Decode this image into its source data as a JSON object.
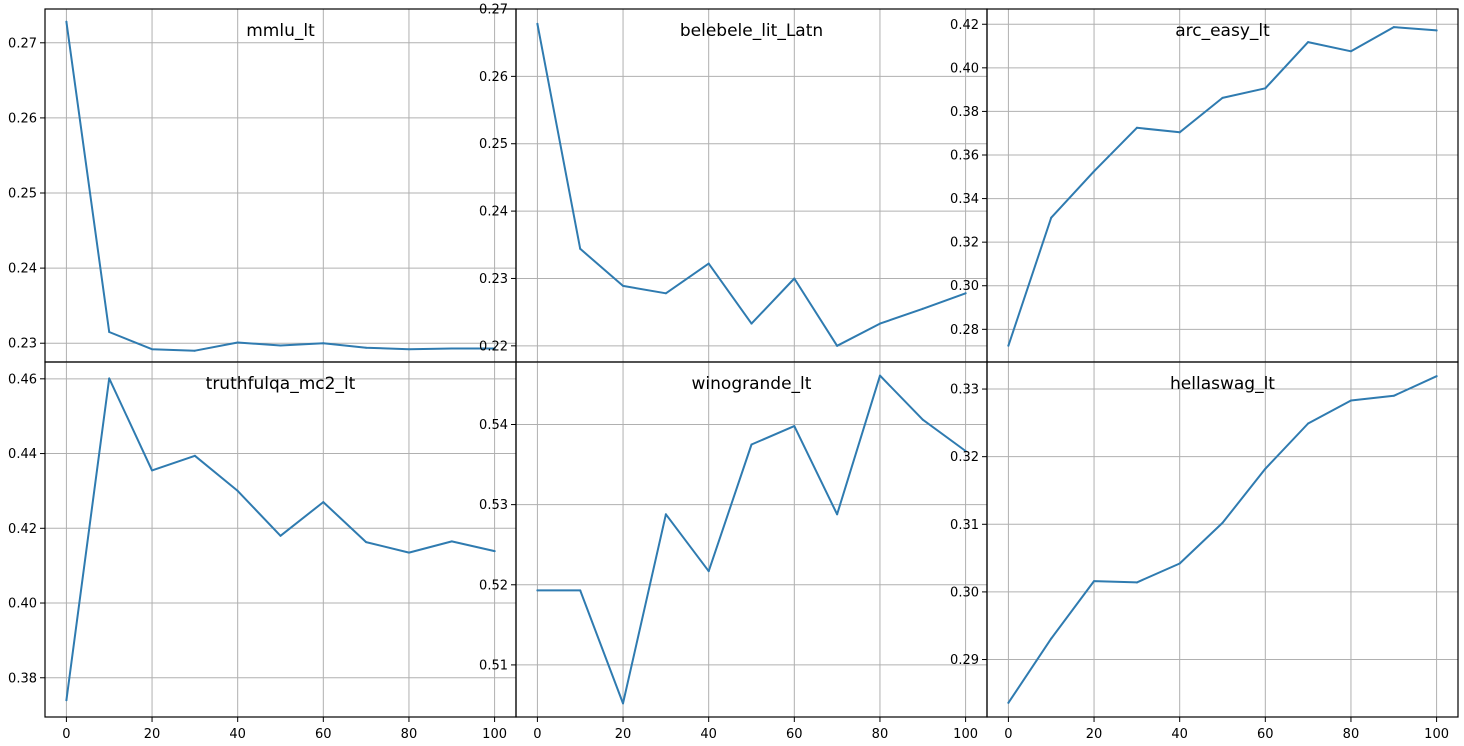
{
  "series_color": "#2f7bb0",
  "chart_data": [
    {
      "type": "line",
      "title": "mmlu_lt",
      "x": [
        0,
        10,
        20,
        30,
        40,
        50,
        60,
        70,
        80,
        90,
        100
      ],
      "y": [
        0.2728,
        0.2315,
        0.2292,
        0.229,
        0.2301,
        0.2297,
        0.23,
        0.2294,
        0.2292,
        0.2293,
        0.2293
      ],
      "xlim": [
        -5,
        105
      ],
      "ylim": [
        0.2275,
        0.2745
      ],
      "xticks": [
        "0",
        "20",
        "40",
        "60",
        "80",
        "100"
      ],
      "yticks": [
        "0.23",
        "0.24",
        "0.25",
        "0.26",
        "0.27"
      ],
      "grid": true
    },
    {
      "type": "line",
      "title": "belebele_lit_Latn",
      "x": [
        0,
        10,
        20,
        30,
        40,
        50,
        60,
        70,
        80,
        90,
        100
      ],
      "y": [
        0.2678,
        0.2344,
        0.2289,
        0.2278,
        0.2322,
        0.2233,
        0.23,
        0.22,
        0.2233,
        0.2255,
        0.2278
      ],
      "xlim": [
        -5,
        105
      ],
      "ylim": [
        0.2176,
        0.27
      ],
      "xticks": [
        "0",
        "20",
        "40",
        "60",
        "80",
        "100"
      ],
      "yticks": [
        "0.22",
        "0.23",
        "0.24",
        "0.25",
        "0.26",
        "0.27"
      ],
      "grid": true
    },
    {
      "type": "line",
      "title": "arc_easy_lt",
      "x": [
        0,
        10,
        20,
        30,
        40,
        50,
        60,
        70,
        80,
        90,
        100
      ],
      "y": [
        0.2725,
        0.3312,
        0.3525,
        0.3725,
        0.3704,
        0.3862,
        0.3906,
        0.4118,
        0.4076,
        0.4187,
        0.4172
      ],
      "xlim": [
        -5,
        105
      ],
      "ylim": [
        0.265,
        0.427
      ],
      "xticks": [
        "0",
        "20",
        "40",
        "60",
        "80",
        "100"
      ],
      "yticks": [
        "0.28",
        "0.30",
        "0.32",
        "0.34",
        "0.36",
        "0.38",
        "0.40",
        "0.42"
      ],
      "grid": true
    },
    {
      "type": "line",
      "title": "truthfulqa_mc2_lt",
      "x": [
        0,
        10,
        20,
        30,
        40,
        50,
        60,
        70,
        80,
        90,
        100
      ],
      "y": [
        0.374,
        0.4601,
        0.4355,
        0.4394,
        0.43,
        0.418,
        0.427,
        0.4163,
        0.4135,
        0.4165,
        0.4139
      ],
      "xlim": [
        -5,
        105
      ],
      "ylim": [
        0.3695,
        0.4645
      ],
      "xticks": [
        "0",
        "20",
        "40",
        "60",
        "80",
        "100"
      ],
      "yticks": [
        "0.38",
        "0.40",
        "0.42",
        "0.44",
        "0.46"
      ],
      "grid": true
    },
    {
      "type": "line",
      "title": "winogrande_lt",
      "x": [
        0,
        10,
        20,
        30,
        40,
        50,
        60,
        70,
        80,
        90,
        100
      ],
      "y": [
        0.5193,
        0.5193,
        0.5052,
        0.5288,
        0.5217,
        0.5375,
        0.5398,
        0.5288,
        0.5461,
        0.5406,
        0.5367
      ],
      "xlim": [
        -5,
        105
      ],
      "ylim": [
        0.5035,
        0.5478
      ],
      "xticks": [
        "0",
        "20",
        "40",
        "60",
        "80",
        "100"
      ],
      "yticks": [
        "0.51",
        "0.52",
        "0.53",
        "0.54"
      ],
      "grid": true
    },
    {
      "type": "line",
      "title": "hellaswag_lt",
      "x": [
        0,
        10,
        20,
        30,
        40,
        50,
        60,
        70,
        80,
        90,
        100
      ],
      "y": [
        0.2836,
        0.2931,
        0.3016,
        0.3014,
        0.3042,
        0.3102,
        0.3182,
        0.3249,
        0.3283,
        0.329,
        0.3319
      ],
      "xlim": [
        -5,
        105
      ],
      "ylim": [
        0.2815,
        0.334
      ],
      "xticks": [
        "0",
        "20",
        "40",
        "60",
        "80",
        "100"
      ],
      "yticks": [
        "0.29",
        "0.30",
        "0.31",
        "0.32",
        "0.33"
      ],
      "grid": true
    }
  ]
}
